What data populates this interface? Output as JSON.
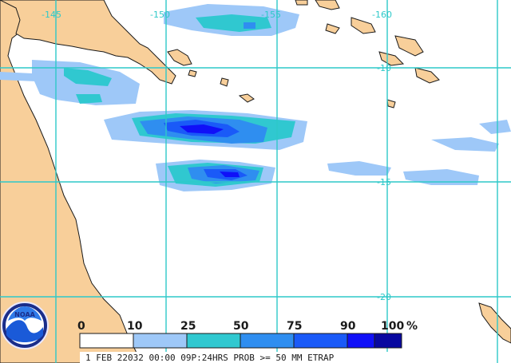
{
  "map": {
    "colors": {
      "land": "#f8cf9a",
      "water": "#ffffff",
      "grid": "#2ec9c9",
      "coast": "#1a1a1a"
    },
    "longitude_labels": [
      "-145",
      "-150",
      "-155",
      "-160"
    ],
    "latitude_labels": [
      "-10",
      "-15",
      "-20"
    ]
  },
  "legend": {
    "ticks": [
      "0",
      "10",
      "25",
      "50",
      "75",
      "90",
      "100"
    ],
    "unit": "%",
    "colors": [
      "#ffffff",
      "#9ec8f8",
      "#30c8d0",
      "#2f8ef0",
      "#1a5af8",
      "#1010f8",
      "#0808a0"
    ]
  },
  "footer": {
    "caption": "1 FEB 22032 00:00 09P:24HRS PROB >= 50 MM ETRAP"
  },
  "logo": {
    "text": "NOAA"
  }
}
